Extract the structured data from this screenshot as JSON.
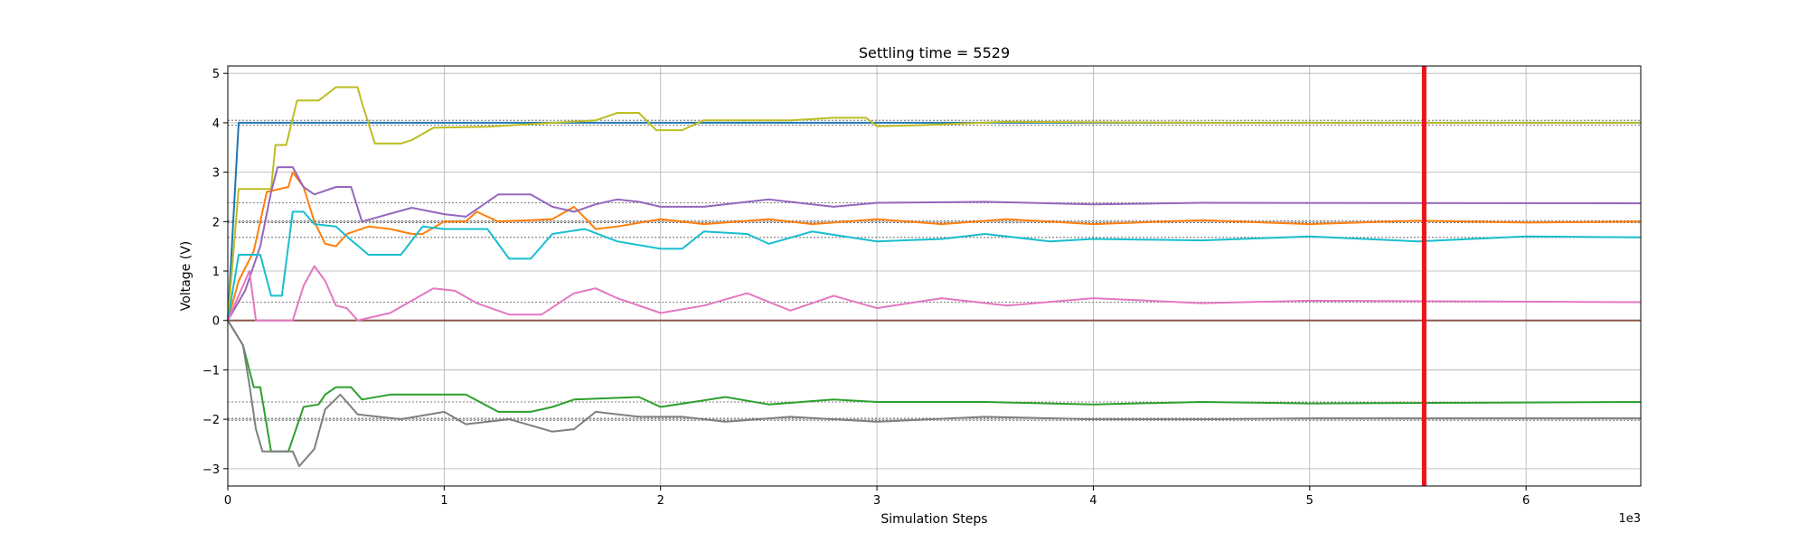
{
  "chart_data": {
    "type": "line",
    "title": "Settling time = 5529",
    "xlabel": "Simulation Steps",
    "ylabel": "Voltage (V)",
    "x_offset_label": "1e3",
    "xlim": [
      0,
      6530
    ],
    "ylim": [
      -3.35,
      5.15
    ],
    "xticks": [
      0,
      1000,
      2000,
      3000,
      4000,
      5000,
      6000
    ],
    "xtick_labels": [
      "0",
      "1",
      "2",
      "3",
      "4",
      "5",
      "6"
    ],
    "yticks": [
      -3,
      -2,
      -1,
      0,
      1,
      2,
      3,
      4,
      5
    ],
    "ytick_labels": [
      "−3",
      "−2",
      "−1",
      "0",
      "1",
      "2",
      "3",
      "4",
      "5"
    ],
    "grid": true,
    "settling_time": 5529,
    "settling_color": "#e8161b",
    "reference_lines": [
      4.05,
      3.95,
      2.38,
      2.02,
      1.98,
      1.68,
      0.37,
      0.0,
      -1.65,
      -1.98,
      -2.02
    ],
    "series": [
      {
        "color": "#1f77b4",
        "points": [
          [
            0,
            0
          ],
          [
            50,
            4.0
          ],
          [
            6530,
            4.0
          ]
        ]
      },
      {
        "color": "#8c564b",
        "points": [
          [
            0,
            0
          ],
          [
            6530,
            0
          ]
        ]
      },
      {
        "color": "#bcbd22",
        "points": [
          [
            0,
            0
          ],
          [
            50,
            2.66
          ],
          [
            200,
            2.66
          ],
          [
            220,
            3.55
          ],
          [
            270,
            3.55
          ],
          [
            320,
            4.45
          ],
          [
            420,
            4.45
          ],
          [
            500,
            4.72
          ],
          [
            600,
            4.72
          ],
          [
            620,
            4.4
          ],
          [
            680,
            3.58
          ],
          [
            800,
            3.58
          ],
          [
            850,
            3.65
          ],
          [
            950,
            3.9
          ],
          [
            1200,
            3.92
          ],
          [
            1700,
            4.05
          ],
          [
            1800,
            4.2
          ],
          [
            1900,
            4.2
          ],
          [
            1980,
            3.85
          ],
          [
            2100,
            3.85
          ],
          [
            2200,
            4.05
          ],
          [
            2600,
            4.05
          ],
          [
            2800,
            4.1
          ],
          [
            2950,
            4.1
          ],
          [
            3000,
            3.93
          ],
          [
            3200,
            3.95
          ],
          [
            3600,
            4.02
          ],
          [
            4500,
            4.0
          ],
          [
            6530,
            4.0
          ]
        ]
      },
      {
        "color": "#ff7f0e",
        "points": [
          [
            0,
            0
          ],
          [
            50,
            0.8
          ],
          [
            120,
            1.4
          ],
          [
            180,
            2.6
          ],
          [
            280,
            2.7
          ],
          [
            300,
            3.0
          ],
          [
            350,
            2.7
          ],
          [
            400,
            2.0
          ],
          [
            450,
            1.55
          ],
          [
            500,
            1.5
          ],
          [
            550,
            1.75
          ],
          [
            650,
            1.9
          ],
          [
            750,
            1.85
          ],
          [
            850,
            1.75
          ],
          [
            900,
            1.75
          ],
          [
            1000,
            2.0
          ],
          [
            1100,
            2.0
          ],
          [
            1150,
            2.2
          ],
          [
            1250,
            2.0
          ],
          [
            1500,
            2.05
          ],
          [
            1600,
            2.3
          ],
          [
            1700,
            1.85
          ],
          [
            1800,
            1.9
          ],
          [
            2000,
            2.05
          ],
          [
            2200,
            1.95
          ],
          [
            2500,
            2.05
          ],
          [
            2700,
            1.95
          ],
          [
            3000,
            2.05
          ],
          [
            3300,
            1.95
          ],
          [
            3600,
            2.05
          ],
          [
            4000,
            1.95
          ],
          [
            4500,
            2.03
          ],
          [
            5000,
            1.95
          ],
          [
            5500,
            2.02
          ],
          [
            6000,
            1.98
          ],
          [
            6530,
            2.0
          ]
        ]
      },
      {
        "color": "#9467bd",
        "points": [
          [
            0,
            0
          ],
          [
            80,
            0.6
          ],
          [
            150,
            1.5
          ],
          [
            200,
            2.6
          ],
          [
            230,
            3.1
          ],
          [
            300,
            3.1
          ],
          [
            350,
            2.7
          ],
          [
            400,
            2.55
          ],
          [
            500,
            2.7
          ],
          [
            570,
            2.7
          ],
          [
            620,
            2.0
          ],
          [
            700,
            2.1
          ],
          [
            850,
            2.28
          ],
          [
            1000,
            2.15
          ],
          [
            1100,
            2.1
          ],
          [
            1200,
            2.4
          ],
          [
            1250,
            2.55
          ],
          [
            1400,
            2.55
          ],
          [
            1500,
            2.3
          ],
          [
            1600,
            2.2
          ],
          [
            1700,
            2.35
          ],
          [
            1800,
            2.45
          ],
          [
            1900,
            2.4
          ],
          [
            2000,
            2.3
          ],
          [
            2200,
            2.3
          ],
          [
            2500,
            2.45
          ],
          [
            2800,
            2.3
          ],
          [
            3000,
            2.38
          ],
          [
            3500,
            2.4
          ],
          [
            4000,
            2.35
          ],
          [
            4500,
            2.38
          ],
          [
            6530,
            2.37
          ]
        ]
      },
      {
        "color": "#17becf",
        "points": [
          [
            0,
            0
          ],
          [
            50,
            1.33
          ],
          [
            150,
            1.33
          ],
          [
            200,
            0.5
          ],
          [
            250,
            0.5
          ],
          [
            300,
            2.2
          ],
          [
            350,
            2.2
          ],
          [
            400,
            1.95
          ],
          [
            500,
            1.9
          ],
          [
            550,
            1.7
          ],
          [
            650,
            1.33
          ],
          [
            800,
            1.33
          ],
          [
            900,
            1.9
          ],
          [
            1000,
            1.85
          ],
          [
            1200,
            1.85
          ],
          [
            1300,
            1.25
          ],
          [
            1400,
            1.25
          ],
          [
            1500,
            1.75
          ],
          [
            1650,
            1.85
          ],
          [
            1800,
            1.6
          ],
          [
            2000,
            1.45
          ],
          [
            2100,
            1.45
          ],
          [
            2200,
            1.8
          ],
          [
            2400,
            1.75
          ],
          [
            2500,
            1.55
          ],
          [
            2700,
            1.8
          ],
          [
            3000,
            1.6
          ],
          [
            3300,
            1.65
          ],
          [
            3500,
            1.75
          ],
          [
            3800,
            1.6
          ],
          [
            4000,
            1.65
          ],
          [
            4500,
            1.62
          ],
          [
            5000,
            1.7
          ],
          [
            5500,
            1.6
          ],
          [
            6000,
            1.7
          ],
          [
            6530,
            1.68
          ]
        ]
      },
      {
        "color": "#e377c2",
        "points": [
          [
            0,
            0
          ],
          [
            50,
            0.5
          ],
          [
            100,
            1.0
          ],
          [
            130,
            0.0
          ],
          [
            300,
            0.0
          ],
          [
            350,
            0.7
          ],
          [
            400,
            1.1
          ],
          [
            450,
            0.8
          ],
          [
            500,
            0.3
          ],
          [
            550,
            0.25
          ],
          [
            600,
            0.0
          ],
          [
            750,
            0.15
          ],
          [
            850,
            0.4
          ],
          [
            950,
            0.65
          ],
          [
            1050,
            0.6
          ],
          [
            1150,
            0.35
          ],
          [
            1300,
            0.12
          ],
          [
            1450,
            0.12
          ],
          [
            1600,
            0.55
          ],
          [
            1700,
            0.65
          ],
          [
            1800,
            0.45
          ],
          [
            2000,
            0.15
          ],
          [
            2200,
            0.3
          ],
          [
            2400,
            0.55
          ],
          [
            2600,
            0.2
          ],
          [
            2800,
            0.5
          ],
          [
            3000,
            0.25
          ],
          [
            3300,
            0.45
          ],
          [
            3600,
            0.3
          ],
          [
            4000,
            0.45
          ],
          [
            4500,
            0.35
          ],
          [
            5000,
            0.4
          ],
          [
            6530,
            0.37
          ]
        ]
      },
      {
        "color": "#2ca02c",
        "points": [
          [
            0,
            0
          ],
          [
            70,
            -0.5
          ],
          [
            120,
            -1.35
          ],
          [
            150,
            -1.35
          ],
          [
            200,
            -2.65
          ],
          [
            280,
            -2.65
          ],
          [
            350,
            -1.75
          ],
          [
            420,
            -1.7
          ],
          [
            450,
            -1.5
          ],
          [
            500,
            -1.35
          ],
          [
            570,
            -1.35
          ],
          [
            620,
            -1.6
          ],
          [
            750,
            -1.5
          ],
          [
            1100,
            -1.5
          ],
          [
            1250,
            -1.85
          ],
          [
            1400,
            -1.85
          ],
          [
            1500,
            -1.75
          ],
          [
            1600,
            -1.6
          ],
          [
            1900,
            -1.55
          ],
          [
            2000,
            -1.75
          ],
          [
            2300,
            -1.55
          ],
          [
            2500,
            -1.7
          ],
          [
            2800,
            -1.6
          ],
          [
            3000,
            -1.65
          ],
          [
            3500,
            -1.65
          ],
          [
            4000,
            -1.7
          ],
          [
            4500,
            -1.65
          ],
          [
            5000,
            -1.68
          ],
          [
            6530,
            -1.65
          ]
        ]
      },
      {
        "color": "#7f7f7f",
        "points": [
          [
            0,
            0
          ],
          [
            70,
            -0.5
          ],
          [
            100,
            -1.3
          ],
          [
            130,
            -2.2
          ],
          [
            160,
            -2.65
          ],
          [
            300,
            -2.65
          ],
          [
            330,
            -2.95
          ],
          [
            400,
            -2.6
          ],
          [
            450,
            -1.8
          ],
          [
            520,
            -1.5
          ],
          [
            600,
            -1.9
          ],
          [
            800,
            -2.0
          ],
          [
            1000,
            -1.85
          ],
          [
            1100,
            -2.1
          ],
          [
            1200,
            -2.05
          ],
          [
            1300,
            -2.0
          ],
          [
            1500,
            -2.25
          ],
          [
            1600,
            -2.2
          ],
          [
            1700,
            -1.85
          ],
          [
            1900,
            -1.95
          ],
          [
            2100,
            -1.95
          ],
          [
            2300,
            -2.05
          ],
          [
            2600,
            -1.95
          ],
          [
            3000,
            -2.05
          ],
          [
            3500,
            -1.95
          ],
          [
            4000,
            -2.0
          ],
          [
            4500,
            -2.0
          ],
          [
            5000,
            -1.98
          ],
          [
            6530,
            -1.98
          ]
        ]
      }
    ]
  }
}
